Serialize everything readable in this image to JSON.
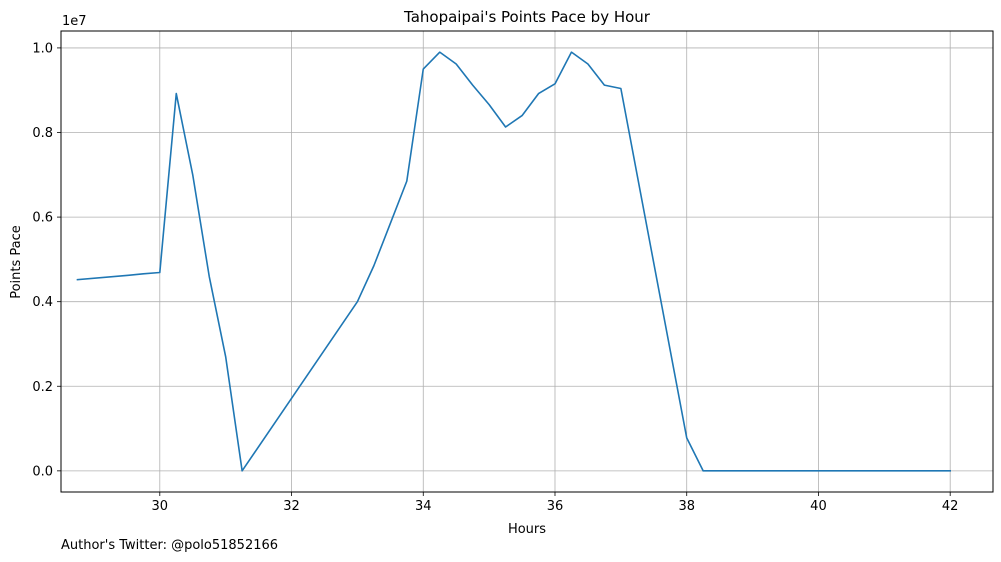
{
  "chart_data": {
    "type": "line",
    "title": "Tahopaipai's Points Pace by Hour",
    "xlabel": "Hours",
    "ylabel": "Points Pace",
    "offset_text": "1e7",
    "xlim": [
      28.5,
      42.65
    ],
    "ylim": [
      -500000,
      10400000
    ],
    "x_ticks": [
      30,
      32,
      34,
      36,
      38,
      40,
      42
    ],
    "x_tick_labels": [
      "30",
      "32",
      "34",
      "36",
      "38",
      "40",
      "42"
    ],
    "y_ticks": [
      0,
      2000000,
      4000000,
      6000000,
      8000000,
      10000000
    ],
    "y_tick_labels": [
      "0.0",
      "0.2",
      "0.4",
      "0.6",
      "0.8",
      "1.0"
    ],
    "grid": true,
    "series": [
      {
        "color": "#1f77b4",
        "x": [
          28.75,
          29.5,
          29.75,
          30.0,
          30.25,
          30.5,
          30.75,
          31.0,
          31.25,
          33.0,
          33.25,
          33.5,
          33.75,
          34.0,
          34.25,
          34.5,
          34.75,
          35.0,
          35.25,
          35.5,
          35.75,
          36.0,
          36.25,
          36.5,
          36.75,
          37.0,
          38.0,
          38.25,
          42.0
        ],
        "y": [
          4520000,
          4620000,
          4660000,
          4690000,
          8920000,
          7000000,
          4600000,
          2700000,
          0,
          4000000,
          4850000,
          5850000,
          6850000,
          9500000,
          9900000,
          9620000,
          9120000,
          8660000,
          8130000,
          8400000,
          8920000,
          9150000,
          9900000,
          9620000,
          9120000,
          9040000,
          780000,
          0,
          0
        ]
      }
    ]
  },
  "footer": {
    "text": "Author's Twitter: @polo51852166"
  }
}
